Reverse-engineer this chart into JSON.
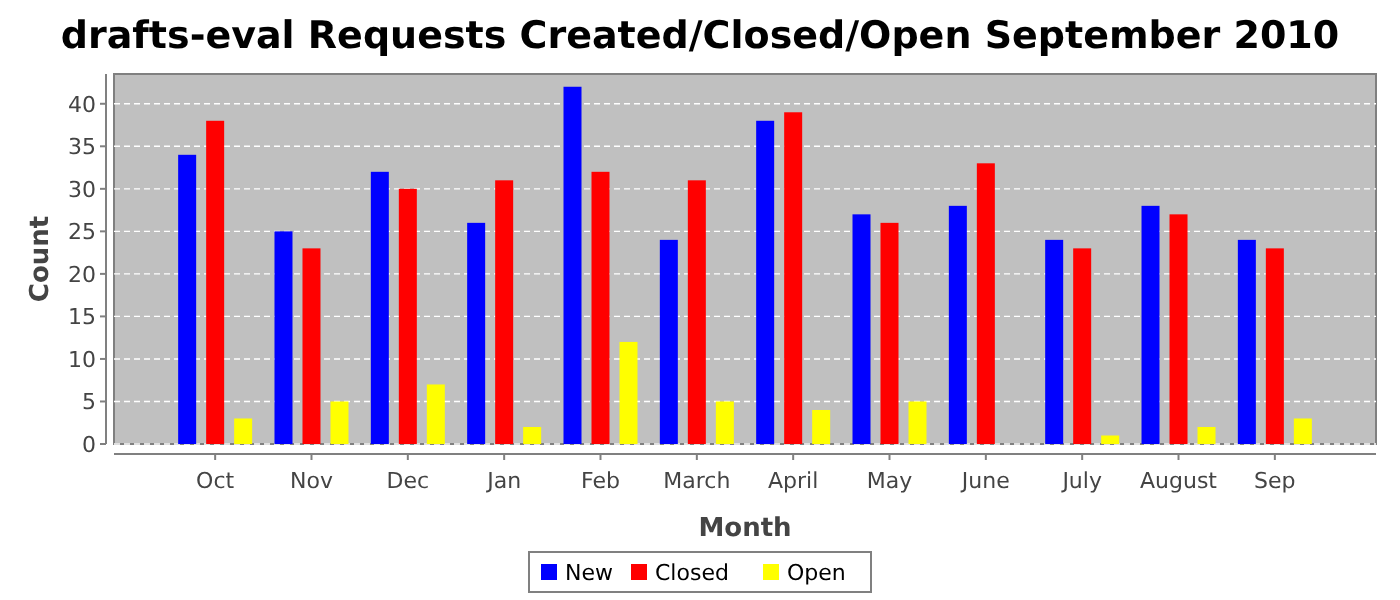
{
  "chart_data": {
    "type": "bar",
    "title": "drafts-eval Requests Created/Closed/Open September 2010",
    "xlabel": "Month",
    "ylabel": "Count",
    "categories": [
      "Oct",
      "Nov",
      "Dec",
      "Jan",
      "Feb",
      "March",
      "April",
      "May",
      "June",
      "July",
      "August",
      "Sep"
    ],
    "series": [
      {
        "name": "New",
        "color": "#0000ff",
        "values": [
          34,
          25,
          32,
          26,
          42,
          24,
          38,
          27,
          28,
          24,
          28,
          24
        ]
      },
      {
        "name": "Closed",
        "color": "#ff0000",
        "values": [
          38,
          23,
          30,
          31,
          32,
          31,
          39,
          26,
          33,
          23,
          27,
          23
        ]
      },
      {
        "name": "Open",
        "color": "#ffff00",
        "values": [
          3,
          5,
          7,
          2,
          12,
          5,
          4,
          5,
          0,
          1,
          2,
          3
        ]
      }
    ],
    "ylim": [
      0,
      43.5
    ],
    "yticks": [
      0,
      5,
      10,
      15,
      20,
      25,
      30,
      35,
      40
    ],
    "grid": "y",
    "legend": "bottom"
  }
}
